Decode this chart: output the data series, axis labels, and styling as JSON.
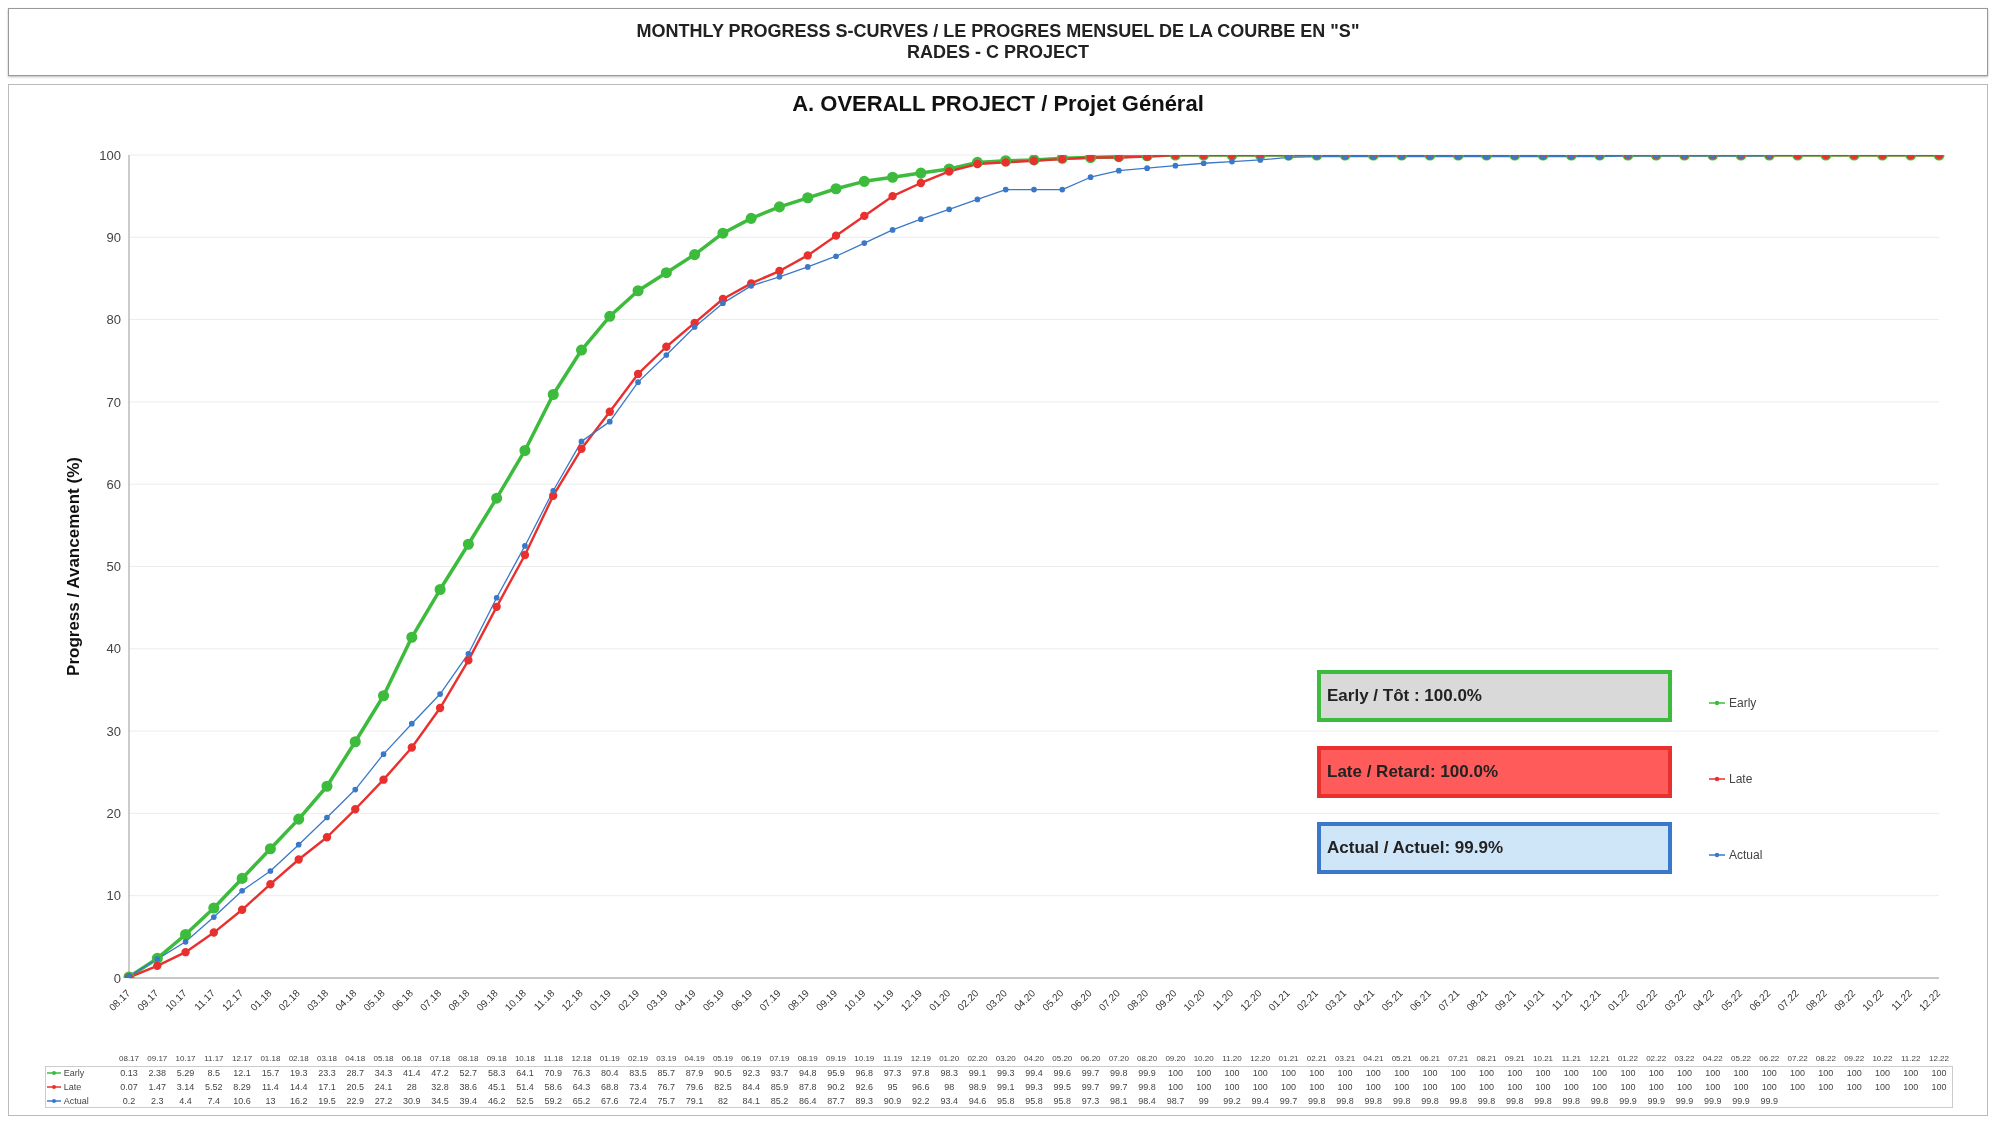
{
  "chart_data": {
    "type": "line",
    "title": "MONTHLY PROGRESS S-CURVES / LE PROGRES MENSUEL DE LA COURBE EN \"S\"",
    "subtitle": "RADES - C PROJECT",
    "ylabel": "Progress / Avancement (%)",
    "annotations": [
      "A. OVERALL PROJECT / Projet Général",
      "Early / Tôt :  100.0%",
      "Late / Retard: 100.0%",
      "Actual / Actuel: 99.9%"
    ],
    "categories": [
      "08.17",
      "09.17",
      "10.17",
      "11.17",
      "12.17",
      "01.18",
      "02.18",
      "03.18",
      "04.18",
      "05.18",
      "06.18",
      "07.18",
      "08.18",
      "09.18",
      "10.18",
      "11.18",
      "12.18",
      "01.19",
      "02.19",
      "03.19",
      "04.19",
      "05.19",
      "06.19",
      "07.19",
      "08.19",
      "09.19",
      "10.19",
      "11.19",
      "12.19",
      "01.20",
      "02.20",
      "03.20",
      "04.20",
      "05.20",
      "06.20",
      "07.20",
      "08.20",
      "09.20",
      "10.20",
      "11.20",
      "12.20",
      "01.21",
      "02.21",
      "03.21",
      "04.21",
      "05.21",
      "06.21",
      "07.21",
      "08.21",
      "09.21",
      "10.21",
      "11.21",
      "12.21",
      "01.22",
      "02.22",
      "03.22",
      "04.22",
      "05.22",
      "06.22",
      "07.22",
      "08.22",
      "09.22",
      "10.22",
      "11.22",
      "12.22"
    ],
    "series": [
      {
        "name": "Early",
        "color": "#3dbb3d",
        "values": [
          0.13,
          2.38,
          5.29,
          8.5,
          12.1,
          15.7,
          19.3,
          23.3,
          28.7,
          34.3,
          41.4,
          47.2,
          52.7,
          58.3,
          64.1,
          70.9,
          76.3,
          80.4,
          83.5,
          85.7,
          87.9,
          90.5,
          92.3,
          93.7,
          94.8,
          95.9,
          96.8,
          97.3,
          97.8,
          98.3,
          99.1,
          99.3,
          99.4,
          99.6,
          99.7,
          99.8,
          99.9,
          100,
          100,
          100,
          100,
          100,
          100,
          100,
          100,
          100,
          100,
          100,
          100,
          100,
          100,
          100,
          100,
          100,
          100,
          100,
          100,
          100,
          100,
          100,
          100,
          100,
          100,
          100,
          100
        ]
      },
      {
        "name": "Late",
        "color": "#e8312f",
        "values": [
          0.07,
          1.47,
          3.14,
          5.52,
          8.29,
          11.4,
          14.4,
          17.1,
          20.5,
          24.1,
          28.0,
          32.8,
          38.6,
          45.1,
          51.4,
          58.6,
          64.3,
          68.8,
          73.4,
          76.7,
          79.6,
          82.5,
          84.4,
          85.9,
          87.8,
          90.2,
          92.6,
          95.0,
          96.6,
          98.0,
          98.9,
          99.1,
          99.3,
          99.5,
          99.7,
          99.7,
          99.8,
          100,
          100,
          100,
          100,
          100,
          100,
          100,
          100,
          100,
          100,
          100,
          100,
          100,
          100,
          100,
          100,
          100,
          100,
          100,
          100,
          100,
          100,
          100,
          100,
          100,
          100,
          100,
          100
        ]
      },
      {
        "name": "Actual",
        "color": "#3a78c9",
        "values": [
          0.2,
          2.3,
          4.4,
          7.4,
          10.6,
          13.0,
          16.2,
          19.5,
          22.9,
          27.2,
          30.9,
          34.5,
          39.4,
          46.2,
          52.5,
          59.2,
          65.2,
          67.6,
          72.4,
          75.7,
          79.1,
          82.0,
          84.1,
          85.2,
          86.4,
          87.7,
          89.3,
          90.9,
          92.2,
          93.4,
          94.6,
          95.8,
          95.8,
          95.8,
          97.3,
          98.1,
          98.4,
          98.7,
          99.0,
          99.2,
          99.4,
          99.7,
          99.8,
          99.8,
          99.8,
          99.8,
          99.8,
          99.8,
          99.8,
          99.8,
          99.8,
          99.8,
          99.8,
          99.9,
          99.9,
          99.9,
          99.9,
          99.9,
          99.9,
          null,
          null,
          null,
          null,
          null,
          null
        ]
      }
    ],
    "ylim": [
      0,
      100
    ],
    "yticks": [
      0,
      10,
      20,
      30,
      40,
      50,
      60,
      70,
      80,
      90,
      100
    ],
    "grid": "y",
    "legend": "right",
    "marker": "circle",
    "line_style": "solid",
    "data_labels": true
  }
}
